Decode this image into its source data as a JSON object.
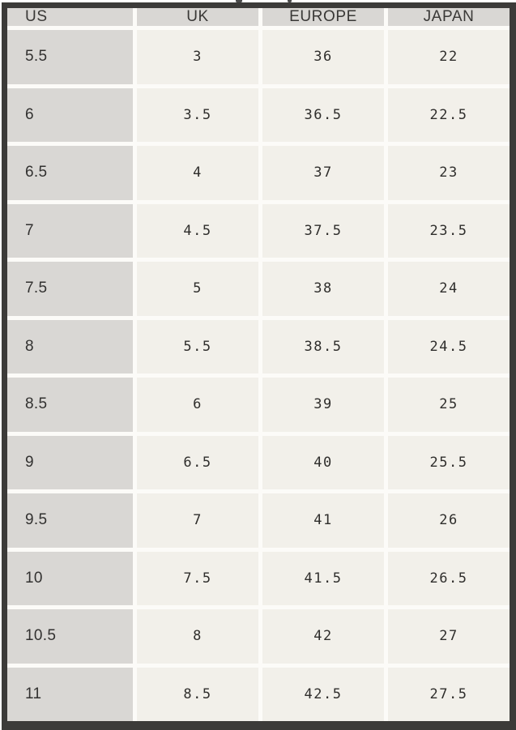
{
  "chart_data": {
    "type": "table",
    "columns": [
      "US",
      "UK",
      "EUROPE",
      "JAPAN"
    ],
    "rows": [
      [
        "5.5",
        "3",
        "36",
        "22"
      ],
      [
        "6",
        "3.5",
        "36.5",
        "22.5"
      ],
      [
        "6.5",
        "4",
        "37",
        "23"
      ],
      [
        "7",
        "4.5",
        "37.5",
        "23.5"
      ],
      [
        "7.5",
        "5",
        "38",
        "24"
      ],
      [
        "8",
        "5.5",
        "38.5",
        "24.5"
      ],
      [
        "8.5",
        "6",
        "39",
        "25"
      ],
      [
        "9",
        "6.5",
        "40",
        "25.5"
      ],
      [
        "9.5",
        "7",
        "41",
        "26"
      ],
      [
        "10",
        "7.5",
        "41.5",
        "26.5"
      ],
      [
        "10.5",
        "8",
        "42",
        "27"
      ],
      [
        "11",
        "8.5",
        "42.5",
        "27.5"
      ]
    ],
    "layout_hints": {
      "header_row_shaded": true,
      "first_column_shaded": true,
      "numeric_columns_centered": true
    }
  },
  "colors": {
    "frame_border": "#3c3b39",
    "header_bg": "#d9d7d4",
    "us_column_bg": "#d9d7d4",
    "cell_bg": "#f2f0ea",
    "separator": "#fcfbf8",
    "header_text": "#393836",
    "cell_text": "#2f2e2c",
    "page_bg": "#ffffff"
  }
}
